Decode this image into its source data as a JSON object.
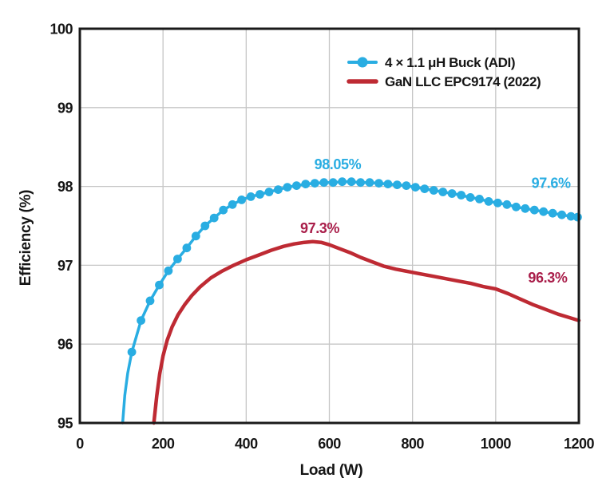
{
  "chart_data": {
    "type": "line",
    "title": "",
    "xlabel": "Load (W)",
    "ylabel": "Efficiency (%)",
    "xlim": [
      0,
      1200
    ],
    "ylim": [
      95,
      100
    ],
    "x_ticks": [
      0,
      200,
      400,
      600,
      800,
      1000,
      1200
    ],
    "y_ticks": [
      95,
      96,
      97,
      98,
      99,
      100
    ],
    "grid": true,
    "legend": {
      "position": "inside-top-right"
    },
    "colors": {
      "axis": "#1a1a1a",
      "grid": "#c6c6c6",
      "blue_series": "#29ADE2",
      "red_series": "#BE2A33",
      "red_annotation": "#A91E4A",
      "text": "#151515"
    },
    "series": [
      {
        "name": "4 × 1.1 μH Buck (ADI)",
        "color": "#29ADE2",
        "marker": "circle",
        "marker_radius": 5.4,
        "marker_skip": 3,
        "line_width": 3.5,
        "points": [
          [
            103,
            95.0
          ],
          [
            108,
            95.35
          ],
          [
            115,
            95.63
          ],
          [
            125,
            95.9
          ],
          [
            147,
            96.3
          ],
          [
            169,
            96.55
          ],
          [
            191,
            96.75
          ],
          [
            213,
            96.93
          ],
          [
            235,
            97.08
          ],
          [
            257,
            97.22
          ],
          [
            279,
            97.37
          ],
          [
            301,
            97.5
          ],
          [
            323,
            97.6
          ],
          [
            345,
            97.7
          ],
          [
            367,
            97.77
          ],
          [
            389,
            97.83
          ],
          [
            411,
            97.87
          ],
          [
            433,
            97.9
          ],
          [
            455,
            97.93
          ],
          [
            477,
            97.96
          ],
          [
            499,
            97.99
          ],
          [
            521,
            98.01
          ],
          [
            543,
            98.03
          ],
          [
            565,
            98.04
          ],
          [
            587,
            98.05
          ],
          [
            609,
            98.05
          ],
          [
            631,
            98.06
          ],
          [
            653,
            98.06
          ],
          [
            675,
            98.05
          ],
          [
            697,
            98.05
          ],
          [
            719,
            98.04
          ],
          [
            741,
            98.03
          ],
          [
            763,
            98.02
          ],
          [
            785,
            98.01
          ],
          [
            807,
            97.99
          ],
          [
            829,
            97.97
          ],
          [
            851,
            97.95
          ],
          [
            873,
            97.93
          ],
          [
            895,
            97.91
          ],
          [
            917,
            97.89
          ],
          [
            939,
            97.86
          ],
          [
            961,
            97.84
          ],
          [
            983,
            97.81
          ],
          [
            1005,
            97.79
          ],
          [
            1027,
            97.77
          ],
          [
            1049,
            97.74
          ],
          [
            1071,
            97.72
          ],
          [
            1093,
            97.7
          ],
          [
            1115,
            97.68
          ],
          [
            1137,
            97.66
          ],
          [
            1159,
            97.64
          ],
          [
            1181,
            97.62
          ],
          [
            1197,
            97.61
          ]
        ]
      },
      {
        "name": "GaN LLC EPC9174 (2022)",
        "color": "#BE2A33",
        "marker": "none",
        "marker_radius": 0,
        "marker_skip": 0,
        "line_width": 4.5,
        "points": [
          [
            178,
            95.0
          ],
          [
            185,
            95.35
          ],
          [
            192,
            95.62
          ],
          [
            200,
            95.85
          ],
          [
            210,
            96.05
          ],
          [
            222,
            96.22
          ],
          [
            236,
            96.37
          ],
          [
            252,
            96.5
          ],
          [
            270,
            96.62
          ],
          [
            290,
            96.73
          ],
          [
            315,
            96.84
          ],
          [
            340,
            96.92
          ],
          [
            370,
            97.0
          ],
          [
            400,
            97.07
          ],
          [
            430,
            97.13
          ],
          [
            460,
            97.19
          ],
          [
            490,
            97.24
          ],
          [
            515,
            97.27
          ],
          [
            540,
            97.29
          ],
          [
            560,
            97.3
          ],
          [
            580,
            97.29
          ],
          [
            600,
            97.26
          ],
          [
            625,
            97.21
          ],
          [
            650,
            97.16
          ],
          [
            675,
            97.1
          ],
          [
            700,
            97.05
          ],
          [
            730,
            96.99
          ],
          [
            760,
            96.95
          ],
          [
            790,
            96.92
          ],
          [
            820,
            96.89
          ],
          [
            850,
            96.86
          ],
          [
            880,
            96.83
          ],
          [
            910,
            96.8
          ],
          [
            940,
            96.77
          ],
          [
            970,
            96.73
          ],
          [
            1000,
            96.7
          ],
          [
            1030,
            96.64
          ],
          [
            1060,
            96.57
          ],
          [
            1090,
            96.5
          ],
          [
            1120,
            96.44
          ],
          [
            1150,
            96.38
          ],
          [
            1175,
            96.34
          ],
          [
            1200,
            96.3
          ]
        ]
      }
    ],
    "annotations": [
      {
        "text": "98.05%",
        "series": "4 × 1.1 μH Buck (ADI)",
        "anchor_x": 620,
        "anchor_y": 98.28,
        "color": "#29ADE2"
      },
      {
        "text": "97.6%",
        "series": "4 × 1.1 μH Buck (ADI)",
        "anchor_x": 1133,
        "anchor_y": 98.04,
        "color": "#29ADE2"
      },
      {
        "text": "97.3%",
        "series": "GaN LLC EPC9174 (2022)",
        "anchor_x": 577,
        "anchor_y": 97.47,
        "color": "#A91E4A"
      },
      {
        "text": "96.3%",
        "series": "GaN LLC EPC9174 (2022)",
        "anchor_x": 1125,
        "anchor_y": 96.84,
        "color": "#A91E4A"
      }
    ]
  }
}
